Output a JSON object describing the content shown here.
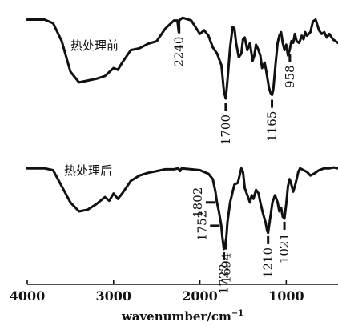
{
  "chart_data": {
    "type": "line",
    "xlabel": "wavenumber/cm",
    "xlabel_superscript": "−1",
    "xlim": [
      4000,
      400
    ],
    "xticks": [
      {
        "value": 4000,
        "label": "4000"
      },
      {
        "value": 3000,
        "label": "3000"
      },
      {
        "value": 2000,
        "label": "2000"
      },
      {
        "value": 1000,
        "label": "1000"
      }
    ],
    "grid": false,
    "series": [
      {
        "name": "热处理前",
        "points": [
          [
            4000,
            0.04
          ],
          [
            3800,
            0.04
          ],
          [
            3700,
            0.08
          ],
          [
            3600,
            0.28
          ],
          [
            3500,
            0.62
          ],
          [
            3400,
            0.74
          ],
          [
            3300,
            0.72
          ],
          [
            3200,
            0.7
          ],
          [
            3100,
            0.67
          ],
          [
            3000,
            0.58
          ],
          [
            2950,
            0.6
          ],
          [
            2900,
            0.52
          ],
          [
            2800,
            0.38
          ],
          [
            2700,
            0.36
          ],
          [
            2600,
            0.31
          ],
          [
            2500,
            0.28
          ],
          [
            2400,
            0.14
          ],
          [
            2300,
            0.05
          ],
          [
            2260,
            0.05
          ],
          [
            2245,
            0.18
          ],
          [
            2240,
            0.05
          ],
          [
            2200,
            0.02
          ],
          [
            2100,
            0.05
          ],
          [
            2000,
            0.2
          ],
          [
            1950,
            0.16
          ],
          [
            1900,
            0.22
          ],
          [
            1850,
            0.35
          ],
          [
            1800,
            0.42
          ],
          [
            1750,
            0.55
          ],
          [
            1720,
            0.85
          ],
          [
            1700,
            0.92
          ],
          [
            1680,
            0.72
          ],
          [
            1650,
            0.35
          ],
          [
            1620,
            0.12
          ],
          [
            1600,
            0.14
          ],
          [
            1580,
            0.3
          ],
          [
            1550,
            0.46
          ],
          [
            1520,
            0.42
          ],
          [
            1500,
            0.26
          ],
          [
            1480,
            0.24
          ],
          [
            1450,
            0.38
          ],
          [
            1420,
            0.3
          ],
          [
            1390,
            0.5
          ],
          [
            1370,
            0.44
          ],
          [
            1350,
            0.32
          ],
          [
            1330,
            0.36
          ],
          [
            1300,
            0.44
          ],
          [
            1280,
            0.58
          ],
          [
            1250,
            0.52
          ],
          [
            1230,
            0.62
          ],
          [
            1200,
            0.8
          ],
          [
            1180,
            0.86
          ],
          [
            1165,
            0.88
          ],
          [
            1150,
            0.82
          ],
          [
            1120,
            0.5
          ],
          [
            1100,
            0.3
          ],
          [
            1080,
            0.22
          ],
          [
            1060,
            0.18
          ],
          [
            1040,
            0.3
          ],
          [
            1020,
            0.38
          ],
          [
            1000,
            0.32
          ],
          [
            980,
            0.44
          ],
          [
            960,
            0.38
          ],
          [
            940,
            0.28
          ],
          [
            920,
            0.3
          ],
          [
            900,
            0.2
          ],
          [
            880,
            0.28
          ],
          [
            850,
            0.3
          ],
          [
            820,
            0.22
          ],
          [
            800,
            0.26
          ],
          [
            780,
            0.18
          ],
          [
            760,
            0.22
          ],
          [
            720,
            0.18
          ],
          [
            690,
            0.06
          ],
          [
            660,
            0.04
          ],
          [
            620,
            0.16
          ],
          [
            590,
            0.2
          ],
          [
            560,
            0.18
          ],
          [
            530,
            0.24
          ],
          [
            500,
            0.2
          ],
          [
            460,
            0.26
          ],
          [
            430,
            0.28
          ],
          [
            400,
            0.3
          ]
        ],
        "annotations": [
          {
            "x": 2240,
            "label": "2240",
            "position": "below"
          },
          {
            "x": 1700,
            "label": "1700",
            "position": "below"
          },
          {
            "x": 1165,
            "label": "1165",
            "position": "below"
          },
          {
            "x": 958,
            "label": "958",
            "position": "below"
          }
        ]
      },
      {
        "name": "热处理后",
        "points": [
          [
            4000,
            0.02
          ],
          [
            3800,
            0.02
          ],
          [
            3700,
            0.04
          ],
          [
            3600,
            0.22
          ],
          [
            3500,
            0.4
          ],
          [
            3400,
            0.5
          ],
          [
            3300,
            0.48
          ],
          [
            3200,
            0.42
          ],
          [
            3100,
            0.34
          ],
          [
            3050,
            0.38
          ],
          [
            3000,
            0.3
          ],
          [
            2950,
            0.36
          ],
          [
            2900,
            0.3
          ],
          [
            2800,
            0.16
          ],
          [
            2700,
            0.1
          ],
          [
            2600,
            0.07
          ],
          [
            2500,
            0.05
          ],
          [
            2400,
            0.03
          ],
          [
            2300,
            0.03
          ],
          [
            2250,
            0.02
          ],
          [
            2230,
            0.05
          ],
          [
            2210,
            0.02
          ],
          [
            2100,
            0.03
          ],
          [
            2000,
            0.04
          ],
          [
            1900,
            0.08
          ],
          [
            1850,
            0.14
          ],
          [
            1820,
            0.28
          ],
          [
            1802,
            0.4
          ],
          [
            1780,
            0.5
          ],
          [
            1752,
            0.66
          ],
          [
            1740,
            0.78
          ],
          [
            1722,
            0.92
          ],
          [
            1710,
            0.88
          ],
          [
            1694,
            0.8
          ],
          [
            1680,
            0.62
          ],
          [
            1650,
            0.4
          ],
          [
            1620,
            0.28
          ],
          [
            1600,
            0.2
          ],
          [
            1560,
            0.18
          ],
          [
            1520,
            0.02
          ],
          [
            1500,
            0.06
          ],
          [
            1480,
            0.24
          ],
          [
            1450,
            0.32
          ],
          [
            1420,
            0.4
          ],
          [
            1400,
            0.32
          ],
          [
            1380,
            0.36
          ],
          [
            1350,
            0.26
          ],
          [
            1320,
            0.3
          ],
          [
            1300,
            0.4
          ],
          [
            1270,
            0.52
          ],
          [
            1240,
            0.62
          ],
          [
            1220,
            0.72
          ],
          [
            1210,
            0.74
          ],
          [
            1190,
            0.6
          ],
          [
            1160,
            0.4
          ],
          [
            1130,
            0.32
          ],
          [
            1100,
            0.4
          ],
          [
            1080,
            0.5
          ],
          [
            1060,
            0.46
          ],
          [
            1040,
            0.56
          ],
          [
            1021,
            0.58
          ],
          [
            1000,
            0.42
          ],
          [
            980,
            0.22
          ],
          [
            960,
            0.14
          ],
          [
            940,
            0.2
          ],
          [
            920,
            0.28
          ],
          [
            900,
            0.22
          ],
          [
            880,
            0.14
          ],
          [
            860,
            0.06
          ],
          [
            840,
            0.02
          ],
          [
            800,
            0.04
          ],
          [
            760,
            0.06
          ],
          [
            720,
            0.1
          ],
          [
            680,
            0.08
          ],
          [
            620,
            0.04
          ],
          [
            560,
            0.02
          ],
          [
            500,
            0.02
          ],
          [
            450,
            0.01
          ],
          [
            400,
            0.02
          ]
        ],
        "annotations": [
          {
            "x": 1802,
            "label": "1802",
            "position": "left"
          },
          {
            "x": 1752,
            "label": "1752",
            "position": "left"
          },
          {
            "x": 1722,
            "label": "1722",
            "position": "below"
          },
          {
            "x": 1694,
            "label": "1694",
            "position": "below"
          },
          {
            "x": 1210,
            "label": "1210",
            "position": "below"
          },
          {
            "x": 1021,
            "label": "1021",
            "position": "below"
          }
        ]
      }
    ]
  },
  "colors": {
    "line": "#111111",
    "background": "#ffffff"
  }
}
